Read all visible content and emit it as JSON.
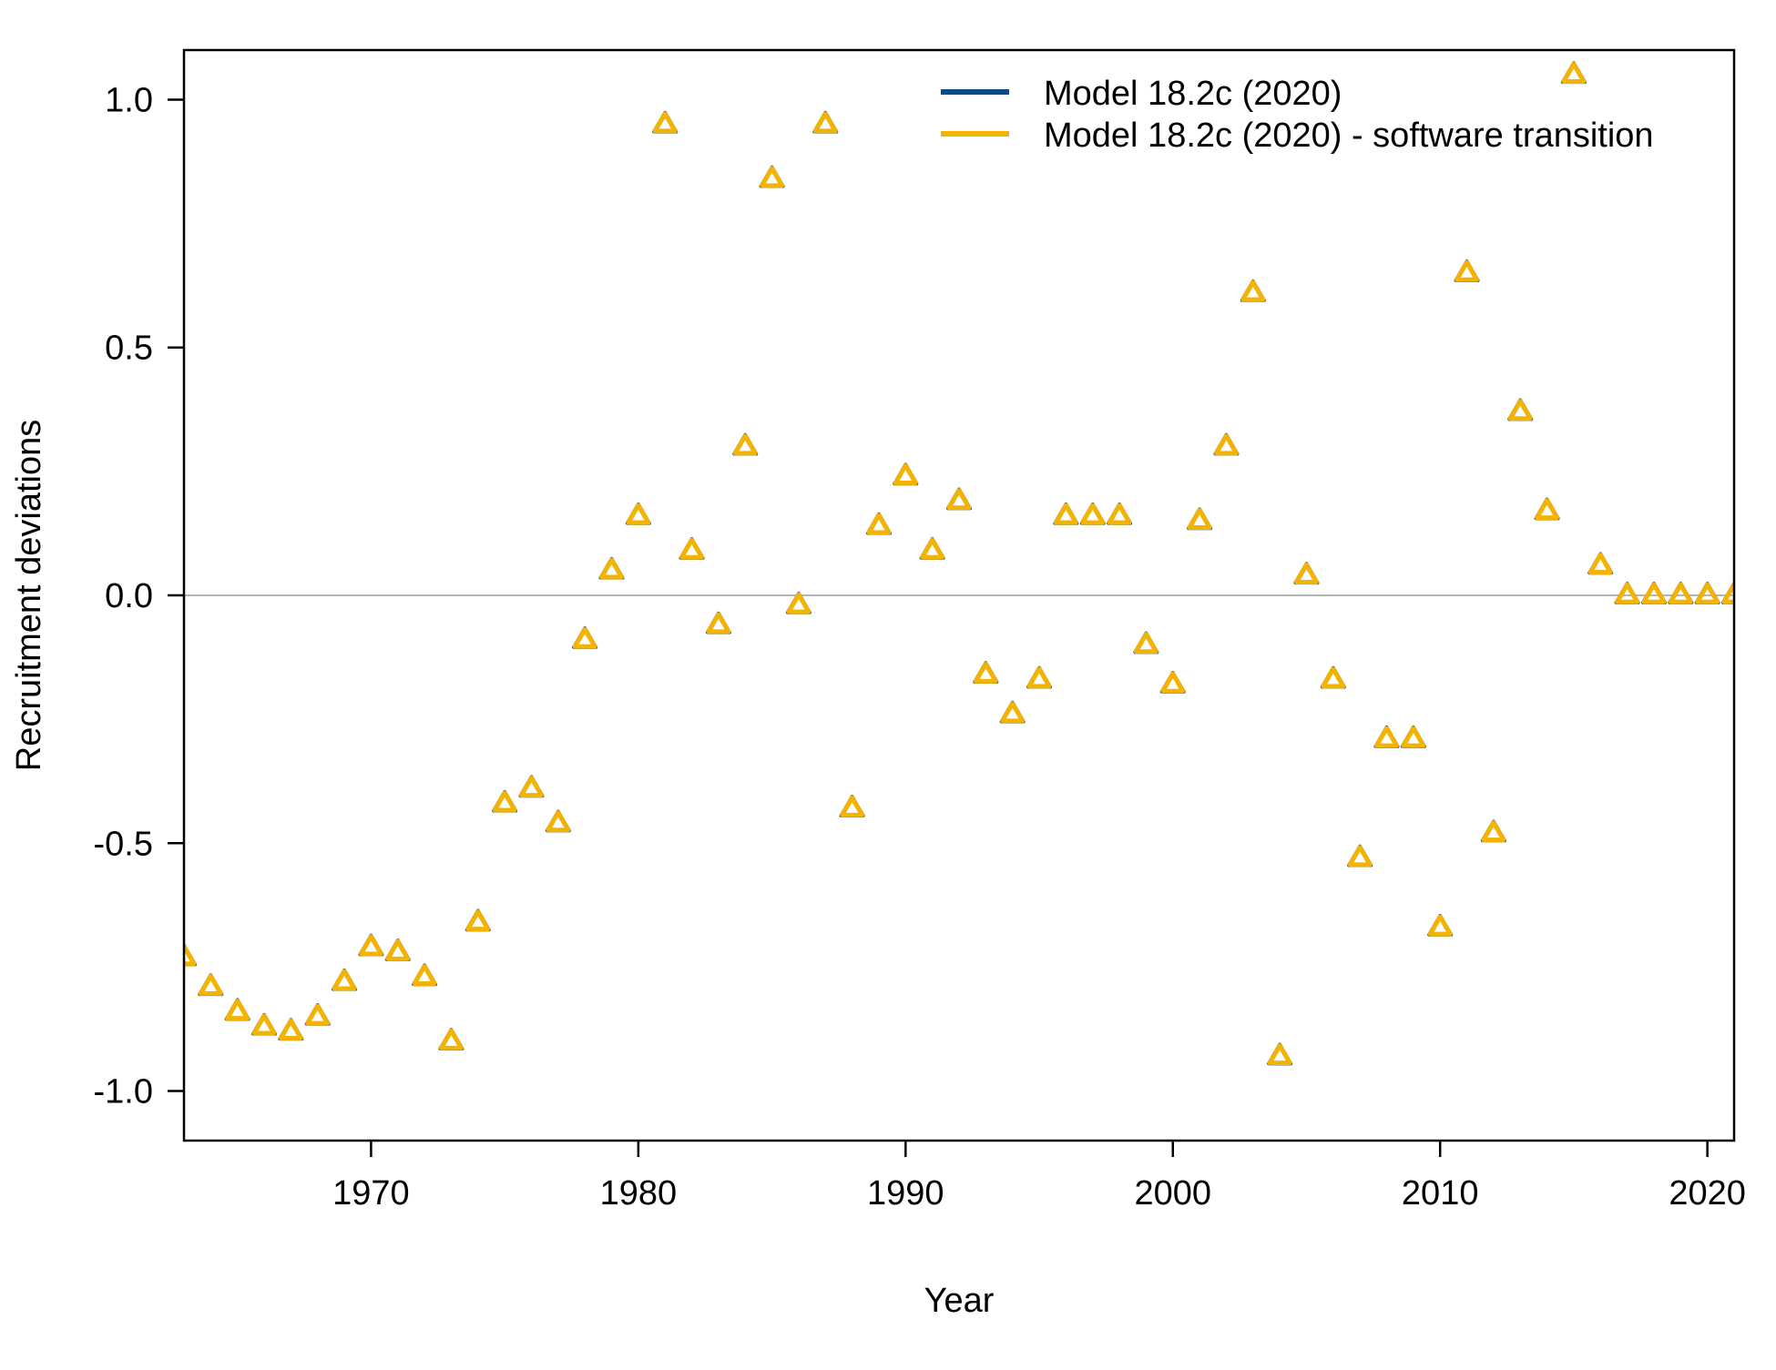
{
  "chart_data": {
    "type": "scatter",
    "xlabel": "Year",
    "ylabel": "Recruitment deviations",
    "xlim": [
      1963,
      2021
    ],
    "ylim": [
      -1.1,
      1.1
    ],
    "x_ticks": [
      1970,
      1980,
      1990,
      2000,
      2010,
      2020
    ],
    "y_ticks": [
      -1.0,
      -0.5,
      0.0,
      0.5,
      1.0
    ],
    "y_tick_labels": [
      "-1.0",
      "-0.5",
      "0.0",
      "0.5",
      "1.0"
    ],
    "reference_line_y": 0,
    "grid": false,
    "legend_position": "top-right",
    "marker": "triangle",
    "x": [
      1963,
      1964,
      1965,
      1966,
      1967,
      1968,
      1969,
      1970,
      1971,
      1972,
      1973,
      1974,
      1975,
      1976,
      1977,
      1978,
      1979,
      1980,
      1981,
      1982,
      1983,
      1984,
      1985,
      1986,
      1987,
      1988,
      1989,
      1990,
      1991,
      1992,
      1993,
      1994,
      1995,
      1996,
      1997,
      1998,
      1999,
      2000,
      2001,
      2002,
      2003,
      2004,
      2005,
      2006,
      2007,
      2008,
      2009,
      2010,
      2011,
      2012,
      2013,
      2014,
      2015,
      2016,
      2017,
      2018,
      2019,
      2020,
      2021
    ],
    "series": [
      {
        "name": "Model 18.2c (2020)",
        "color": "#0B4A8B",
        "values": [
          -0.73,
          -0.79,
          -0.84,
          -0.87,
          -0.88,
          -0.85,
          -0.78,
          -0.71,
          -0.72,
          -0.77,
          -0.9,
          -0.66,
          -0.42,
          -0.39,
          -0.46,
          -0.09,
          0.05,
          0.16,
          0.95,
          0.09,
          -0.06,
          0.3,
          0.84,
          -0.02,
          0.95,
          -0.43,
          0.14,
          0.24,
          0.09,
          0.19,
          -0.16,
          -0.24,
          -0.17,
          0.16,
          0.16,
          0.16,
          -0.1,
          -0.18,
          0.15,
          0.3,
          0.61,
          -0.93,
          0.04,
          -0.17,
          -0.53,
          -0.29,
          -0.29,
          -0.67,
          0.65,
          -0.48,
          0.37,
          0.17,
          1.05,
          0.06,
          0.0,
          0.0,
          0.0,
          0.0,
          0.0
        ]
      },
      {
        "name": "Model 18.2c (2020) - software transition",
        "color": "#F5B301",
        "values": [
          -0.73,
          -0.79,
          -0.84,
          -0.87,
          -0.88,
          -0.85,
          -0.78,
          -0.71,
          -0.72,
          -0.77,
          -0.9,
          -0.66,
          -0.42,
          -0.39,
          -0.46,
          -0.09,
          0.05,
          0.16,
          0.95,
          0.09,
          -0.06,
          0.3,
          0.84,
          -0.02,
          0.95,
          -0.43,
          0.14,
          0.24,
          0.09,
          0.19,
          -0.16,
          -0.24,
          -0.17,
          0.16,
          0.16,
          0.16,
          -0.1,
          -0.18,
          0.15,
          0.3,
          0.61,
          -0.93,
          0.04,
          -0.17,
          -0.53,
          -0.29,
          -0.29,
          -0.67,
          0.65,
          -0.48,
          0.37,
          0.17,
          1.05,
          0.06,
          0.0,
          0.0,
          0.0,
          0.0,
          0.0
        ]
      }
    ]
  }
}
